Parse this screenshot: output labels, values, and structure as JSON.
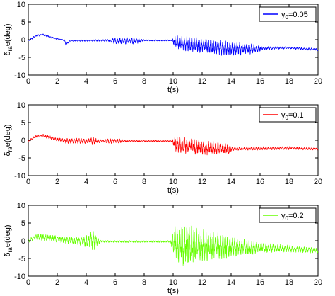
{
  "chart_data": [
    {
      "type": "line",
      "ylabel": "δ_ra e(deg)",
      "xlabel": "t(s)",
      "xlim": [
        0,
        20
      ],
      "ylim": [
        -10,
        10
      ],
      "xticks": [
        "0",
        "2",
        "4",
        "6",
        "8",
        "10",
        "12",
        "14",
        "16",
        "18",
        "20"
      ],
      "yticks": [
        "10",
        "5",
        "0",
        "-5",
        "-10"
      ],
      "grid": false,
      "legend_position": "top-right",
      "series": [
        {
          "name": "γ0=0.05",
          "color": "#0000ff",
          "envelope": [
            {
              "t": 0.0,
              "mean": -0.3,
              "amp": 0.3
            },
            {
              "t": 0.5,
              "mean": 1.0,
              "amp": 0.3
            },
            {
              "t": 1.0,
              "mean": 1.4,
              "amp": 0.3
            },
            {
              "t": 1.8,
              "mean": 0.4,
              "amp": 0.2
            },
            {
              "t": 2.5,
              "mean": -0.2,
              "amp": 0.2
            },
            {
              "t": 2.6,
              "mean": -1.4,
              "amp": 0.3
            },
            {
              "t": 2.9,
              "mean": -0.3,
              "amp": 0.2
            },
            {
              "t": 5.5,
              "mean": -0.2,
              "amp": 0.3
            },
            {
              "t": 6.0,
              "mean": -0.3,
              "amp": 1.0
            },
            {
              "t": 7.5,
              "mean": -0.3,
              "amp": 1.0
            },
            {
              "t": 8.0,
              "mean": -0.2,
              "amp": 0.2
            },
            {
              "t": 9.9,
              "mean": -0.2,
              "amp": 0.2
            },
            {
              "t": 10.2,
              "mean": -0.8,
              "amp": 2.2
            },
            {
              "t": 12.0,
              "mean": -1.6,
              "amp": 2.3
            },
            {
              "t": 14.0,
              "mean": -2.4,
              "amp": 2.4
            },
            {
              "t": 15.5,
              "mean": -2.6,
              "amp": 1.5
            },
            {
              "t": 16.2,
              "mean": -2.4,
              "amp": 0.5
            },
            {
              "t": 18.0,
              "mean": -2.3,
              "amp": 0.3
            },
            {
              "t": 20.0,
              "mean": -2.8,
              "amp": 0.4
            }
          ]
        }
      ]
    },
    {
      "type": "line",
      "ylabel": "δ_ra e(deg)",
      "xlabel": "t(s)",
      "xlim": [
        0,
        20
      ],
      "ylim": [
        -10,
        10
      ],
      "xticks": [
        "0",
        "2",
        "4",
        "6",
        "8",
        "10",
        "12",
        "14",
        "16",
        "18",
        "20"
      ],
      "yticks": [
        "10",
        "5",
        "0",
        "-5",
        "-10"
      ],
      "grid": false,
      "legend_position": "top-right",
      "series": [
        {
          "name": "γ0=0.1",
          "color": "#ff0000",
          "envelope": [
            {
              "t": 0.0,
              "mean": -0.3,
              "amp": 0.4
            },
            {
              "t": 0.5,
              "mean": 1.0,
              "amp": 0.4
            },
            {
              "t": 1.0,
              "mean": 1.3,
              "amp": 0.5
            },
            {
              "t": 2.0,
              "mean": 0.2,
              "amp": 0.5
            },
            {
              "t": 2.5,
              "mean": -0.2,
              "amp": 0.8
            },
            {
              "t": 4.0,
              "mean": -0.2,
              "amp": 0.8
            },
            {
              "t": 4.5,
              "mean": -0.3,
              "amp": 1.2
            },
            {
              "t": 5.0,
              "mean": -0.2,
              "amp": 0.4
            },
            {
              "t": 6.0,
              "mean": -0.2,
              "amp": 0.8
            },
            {
              "t": 7.0,
              "mean": -0.2,
              "amp": 0.2
            },
            {
              "t": 9.9,
              "mean": -0.2,
              "amp": 0.2
            },
            {
              "t": 10.2,
              "mean": -1.0,
              "amp": 2.5
            },
            {
              "t": 12.0,
              "mean": -2.0,
              "amp": 2.3
            },
            {
              "t": 13.8,
              "mean": -2.5,
              "amp": 1.5
            },
            {
              "t": 14.2,
              "mean": -2.4,
              "amp": 0.5
            },
            {
              "t": 18.0,
              "mean": -2.2,
              "amp": 0.5
            },
            {
              "t": 20.0,
              "mean": -2.5,
              "amp": 0.3
            }
          ]
        }
      ]
    },
    {
      "type": "line",
      "ylabel": "δ_ra e(deg)",
      "xlabel": "t(s)",
      "xlim": [
        0,
        20
      ],
      "ylim": [
        -10,
        10
      ],
      "xticks": [
        "0",
        "2",
        "4",
        "6",
        "8",
        "10",
        "12",
        "14",
        "16",
        "18",
        "20"
      ],
      "yticks": [
        "10",
        "5",
        "0",
        "-5",
        "-10"
      ],
      "grid": false,
      "legend_position": "top-right",
      "series": [
        {
          "name": "γ0=0.2",
          "color": "#66ff00",
          "envelope": [
            {
              "t": 0.0,
              "mean": -0.3,
              "amp": 0.5
            },
            {
              "t": 0.4,
              "mean": 1.0,
              "amp": 0.8
            },
            {
              "t": 1.0,
              "mean": 1.0,
              "amp": 1.0
            },
            {
              "t": 2.5,
              "mean": 0.2,
              "amp": 1.0
            },
            {
              "t": 3.8,
              "mean": -0.2,
              "amp": 1.2
            },
            {
              "t": 4.3,
              "mean": 0.0,
              "amp": 3.0
            },
            {
              "t": 4.6,
              "mean": 0.0,
              "amp": 2.5
            },
            {
              "t": 5.0,
              "mean": -0.2,
              "amp": 0.3
            },
            {
              "t": 9.8,
              "mean": -0.2,
              "amp": 0.3
            },
            {
              "t": 10.2,
              "mean": -1.0,
              "amp": 6.8
            },
            {
              "t": 11.0,
              "mean": -1.0,
              "amp": 6.0
            },
            {
              "t": 12.5,
              "mean": -1.5,
              "amp": 4.5
            },
            {
              "t": 14.0,
              "mean": -1.8,
              "amp": 3.0
            },
            {
              "t": 16.0,
              "mean": -2.0,
              "amp": 1.5
            },
            {
              "t": 18.0,
              "mean": -2.2,
              "amp": 1.0
            },
            {
              "t": 20.0,
              "mean": -2.8,
              "amp": 0.8
            }
          ]
        }
      ]
    }
  ]
}
